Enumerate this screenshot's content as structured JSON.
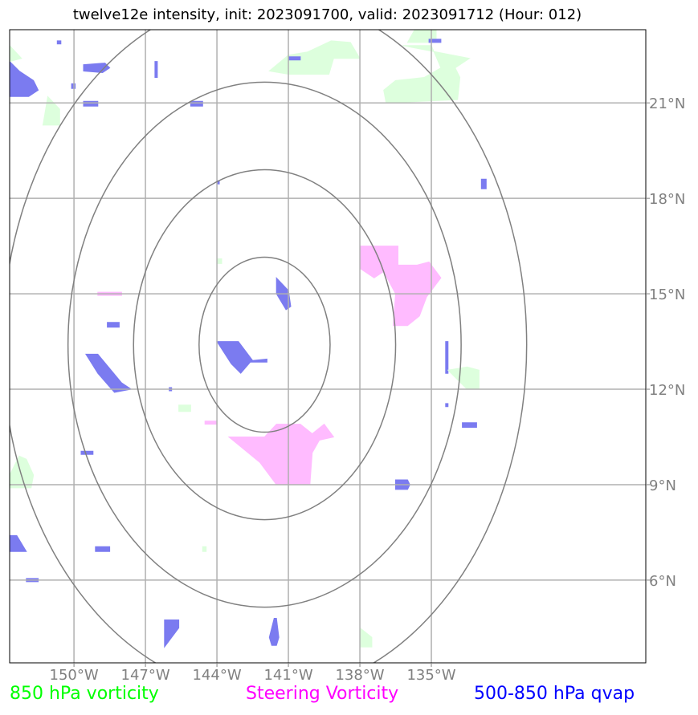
{
  "title": "twelve12e intensity, init: 2023091700, valid: 2023091712 (Hour: 012)",
  "chart_data": {
    "type": "map",
    "map_projection": "lat-lon",
    "longitude_range": [
      -152.7,
      -126.0
    ],
    "latitude_range": [
      3.4,
      23.3
    ],
    "longitude_ticks": [
      -150,
      -147,
      -144,
      -141,
      -138,
      -135
    ],
    "latitude_ticks": [
      21,
      18,
      15,
      12,
      9,
      6
    ],
    "longitude_tick_labels": [
      "150°W",
      "147°W",
      "144°W",
      "141°W",
      "138°W",
      "135°W"
    ],
    "latitude_tick_labels": [
      "21°N",
      "18°N",
      "15°N",
      "12°N",
      "9°N",
      "6°N"
    ],
    "grid": true,
    "range_rings": {
      "center_lon": -142,
      "center_lat": 13.4,
      "radii_deg": [
        2.75,
        5.5,
        8.25,
        11.0
      ],
      "color": "#808080"
    },
    "legend": [
      {
        "label": "850 hPa vorticity",
        "color": "#00ff00"
      },
      {
        "label": "Steering Vorticity",
        "color": "#ff00ff"
      },
      {
        "label": "500-850 hPa qvap",
        "color": "#0000ff"
      }
    ],
    "fill_colors": {
      "green": "#ddffdd",
      "magenta": "#ffbbff",
      "blue": "#7b7bf0"
    },
    "blobs": [
      {
        "field": "blue",
        "points": [
          [
            -152.7,
            22.3
          ],
          [
            -152.3,
            22.0
          ],
          [
            -151.7,
            21.7
          ],
          [
            -151.5,
            21.4
          ],
          [
            -151.9,
            21.2
          ],
          [
            -152.7,
            21.2
          ]
        ]
      },
      {
        "field": "green",
        "points": [
          [
            -152.7,
            22.8
          ],
          [
            -152.2,
            22.4
          ],
          [
            -152.7,
            22.3
          ]
        ]
      },
      {
        "field": "green",
        "points": [
          [
            -151.1,
            21.2
          ],
          [
            -150.6,
            20.8
          ],
          [
            -150.6,
            20.3
          ],
          [
            -151.3,
            20.3
          ]
        ]
      },
      {
        "field": "blue",
        "points": [
          [
            -149.6,
            22.2
          ],
          [
            -148.7,
            22.25
          ],
          [
            -148.5,
            22.1
          ],
          [
            -148.8,
            21.95
          ],
          [
            -149.6,
            22.0
          ]
        ]
      },
      {
        "field": "blue",
        "points": [
          [
            -146.6,
            22.3
          ],
          [
            -146.5,
            22.3
          ],
          [
            -146.5,
            21.8
          ],
          [
            -146.6,
            21.8
          ]
        ]
      },
      {
        "field": "blue",
        "points": [
          [
            -149.6,
            21.05
          ],
          [
            -149.0,
            21.05
          ],
          [
            -149.0,
            20.9
          ],
          [
            -149.6,
            20.9
          ]
        ]
      },
      {
        "field": "blue",
        "points": [
          [
            -150.1,
            21.6
          ],
          [
            -149.95,
            21.6
          ],
          [
            -149.95,
            21.45
          ],
          [
            -150.1,
            21.45
          ]
        ]
      },
      {
        "field": "blue",
        "points": [
          [
            -150.7,
            22.95
          ],
          [
            -150.55,
            22.95
          ],
          [
            -150.55,
            22.85
          ],
          [
            -150.7,
            22.85
          ]
        ]
      },
      {
        "field": "blue",
        "points": [
          [
            -145.1,
            21.05
          ],
          [
            -144.6,
            21.05
          ],
          [
            -144.6,
            20.9
          ],
          [
            -145.1,
            20.9
          ]
        ]
      },
      {
        "field": "green",
        "points": [
          [
            -141.0,
            22.5
          ],
          [
            -140.2,
            22.6
          ],
          [
            -139.2,
            22.95
          ],
          [
            -138.4,
            22.9
          ],
          [
            -138.0,
            22.4
          ],
          [
            -139.1,
            22.4
          ],
          [
            -139.3,
            21.9
          ],
          [
            -141.0,
            21.9
          ],
          [
            -141.8,
            22.0
          ]
        ]
      },
      {
        "field": "blue",
        "points": [
          [
            -141.0,
            22.45
          ],
          [
            -140.5,
            22.45
          ],
          [
            -140.5,
            22.35
          ],
          [
            -141.0,
            22.35
          ]
        ]
      },
      {
        "field": "green",
        "points": [
          [
            -136.2,
            22.8
          ],
          [
            -135.0,
            22.8
          ],
          [
            -134.6,
            22.1
          ],
          [
            -135.3,
            21.8
          ],
          [
            -136.5,
            21.7
          ],
          [
            -137.0,
            21.4
          ],
          [
            -136.9,
            21.0
          ],
          [
            -133.9,
            21.1
          ],
          [
            -133.8,
            21.8
          ],
          [
            -134.0,
            22.1
          ],
          [
            -133.4,
            22.4
          ]
        ]
      },
      {
        "field": "green",
        "points": [
          [
            -135.7,
            23.3
          ],
          [
            -134.8,
            23.3
          ],
          [
            -134.8,
            22.9
          ],
          [
            -136.0,
            22.9
          ]
        ]
      },
      {
        "field": "blue",
        "points": [
          [
            -135.1,
            23.0
          ],
          [
            -134.6,
            23.0
          ],
          [
            -134.6,
            22.9
          ],
          [
            -135.1,
            22.9
          ]
        ]
      },
      {
        "field": "blue",
        "points": [
          [
            -132.9,
            18.6
          ],
          [
            -132.7,
            18.6
          ],
          [
            -132.7,
            18.3
          ],
          [
            -132.9,
            18.3
          ]
        ]
      },
      {
        "field": "blue",
        "points": [
          [
            -144.0,
            18.55
          ],
          [
            -143.9,
            18.55
          ],
          [
            -143.9,
            18.45
          ],
          [
            -144.0,
            18.45
          ]
        ]
      },
      {
        "field": "green",
        "points": [
          [
            -144.0,
            16.1
          ],
          [
            -143.8,
            16.1
          ],
          [
            -143.8,
            15.95
          ],
          [
            -144.0,
            15.95
          ]
        ]
      },
      {
        "field": "magenta",
        "points": [
          [
            -138.0,
            16.5
          ],
          [
            -136.4,
            16.5
          ],
          [
            -136.4,
            15.9
          ],
          [
            -135.6,
            15.9
          ],
          [
            -135.1,
            16.0
          ],
          [
            -134.6,
            15.5
          ],
          [
            -135.2,
            14.9
          ],
          [
            -135.5,
            14.3
          ],
          [
            -136.0,
            14.0
          ],
          [
            -136.6,
            14.0
          ],
          [
            -136.5,
            15.0
          ],
          [
            -137.0,
            15.7
          ],
          [
            -137.4,
            15.5
          ],
          [
            -138.0,
            15.8
          ]
        ]
      },
      {
        "field": "blue",
        "points": [
          [
            -141.5,
            15.5
          ],
          [
            -141.0,
            15.1
          ],
          [
            -140.9,
            14.6
          ],
          [
            -141.1,
            14.5
          ],
          [
            -141.5,
            15.0
          ]
        ]
      },
      {
        "field": "magenta",
        "points": [
          [
            -149.0,
            15.05
          ],
          [
            -148.0,
            15.05
          ],
          [
            -148.0,
            14.95
          ],
          [
            -149.0,
            14.95
          ]
        ]
      },
      {
        "field": "blue",
        "points": [
          [
            -148.6,
            14.1
          ],
          [
            -148.1,
            14.1
          ],
          [
            -148.1,
            13.95
          ],
          [
            -148.6,
            13.95
          ]
        ]
      },
      {
        "field": "blue",
        "points": [
          [
            -144.0,
            13.5
          ],
          [
            -143.1,
            13.5
          ],
          [
            -142.5,
            12.9
          ],
          [
            -141.9,
            12.95
          ],
          [
            -141.9,
            12.85
          ],
          [
            -142.6,
            12.85
          ],
          [
            -143.0,
            12.5
          ],
          [
            -143.4,
            12.8
          ]
        ]
      },
      {
        "field": "blue",
        "points": [
          [
            -149.5,
            13.1
          ],
          [
            -149.0,
            13.1
          ],
          [
            -148.0,
            12.2
          ],
          [
            -147.6,
            12.0
          ],
          [
            -148.3,
            11.9
          ],
          [
            -149.0,
            12.5
          ]
        ]
      },
      {
        "field": "blue",
        "points": [
          [
            -146.0,
            12.05
          ],
          [
            -145.9,
            12.05
          ],
          [
            -145.9,
            11.95
          ],
          [
            -146.0,
            11.95
          ]
        ]
      },
      {
        "field": "blue",
        "points": [
          [
            -134.4,
            13.5
          ],
          [
            -134.3,
            13.5
          ],
          [
            -134.3,
            12.5
          ],
          [
            -134.4,
            12.5
          ]
        ]
      },
      {
        "field": "green",
        "points": [
          [
            -134.3,
            12.6
          ],
          [
            -133.5,
            12.7
          ],
          [
            -133.0,
            12.6
          ],
          [
            -133.0,
            12.0
          ],
          [
            -133.5,
            12.0
          ]
        ]
      },
      {
        "field": "blue",
        "points": [
          [
            -134.4,
            11.55
          ],
          [
            -134.3,
            11.55
          ],
          [
            -134.3,
            11.45
          ],
          [
            -134.4,
            11.45
          ]
        ]
      },
      {
        "field": "blue",
        "points": [
          [
            -133.7,
            10.95
          ],
          [
            -133.1,
            10.95
          ],
          [
            -133.1,
            10.8
          ],
          [
            -133.7,
            10.8
          ]
        ]
      },
      {
        "field": "green",
        "points": [
          [
            -145.6,
            11.5
          ],
          [
            -145.1,
            11.5
          ],
          [
            -145.1,
            11.3
          ],
          [
            -145.6,
            11.3
          ]
        ]
      },
      {
        "field": "magenta",
        "points": [
          [
            -144.5,
            11.0
          ],
          [
            -144.0,
            11.0
          ],
          [
            -144.0,
            10.9
          ],
          [
            -144.5,
            10.9
          ]
        ]
      },
      {
        "field": "magenta",
        "points": [
          [
            -143.5,
            10.5
          ],
          [
            -142.0,
            10.5
          ],
          [
            -141.5,
            10.9
          ],
          [
            -140.5,
            10.9
          ],
          [
            -140.0,
            10.6
          ],
          [
            -139.5,
            10.9
          ],
          [
            -139.1,
            10.5
          ],
          [
            -139.7,
            10.4
          ],
          [
            -140.0,
            10.0
          ],
          [
            -140.1,
            9.0
          ],
          [
            -141.5,
            9.0
          ],
          [
            -142.2,
            9.7
          ]
        ]
      },
      {
        "field": "blue",
        "points": [
          [
            -149.7,
            10.05
          ],
          [
            -149.2,
            10.05
          ],
          [
            -149.2,
            9.95
          ],
          [
            -149.7,
            9.95
          ]
        ]
      },
      {
        "field": "green",
        "points": [
          [
            -152.7,
            9.3
          ],
          [
            -152.3,
            9.9
          ],
          [
            -152.0,
            9.8
          ],
          [
            -151.7,
            9.3
          ],
          [
            -151.8,
            8.9
          ],
          [
            -152.7,
            8.9
          ]
        ]
      },
      {
        "field": "blue",
        "points": [
          [
            -136.5,
            9.15
          ],
          [
            -136.0,
            9.15
          ],
          [
            -135.9,
            9.0
          ],
          [
            -136.0,
            8.85
          ],
          [
            -136.5,
            8.85
          ]
        ]
      },
      {
        "field": "blue",
        "points": [
          [
            -152.7,
            7.4
          ],
          [
            -152.4,
            7.4
          ],
          [
            -152.0,
            6.9
          ],
          [
            -152.7,
            6.9
          ]
        ]
      },
      {
        "field": "blue",
        "points": [
          [
            -149.1,
            7.05
          ],
          [
            -148.5,
            7.05
          ],
          [
            -148.5,
            6.9
          ],
          [
            -149.1,
            6.9
          ]
        ]
      },
      {
        "field": "green",
        "points": [
          [
            -144.6,
            7.05
          ],
          [
            -144.45,
            7.05
          ],
          [
            -144.45,
            6.9
          ],
          [
            -144.6,
            6.9
          ]
        ]
      },
      {
        "field": "blue",
        "points": [
          [
            -152.0,
            6.05
          ],
          [
            -151.5,
            6.05
          ],
          [
            -151.5,
            5.95
          ],
          [
            -152.0,
            5.95
          ]
        ]
      },
      {
        "field": "blue",
        "points": [
          [
            -146.2,
            4.75
          ],
          [
            -145.6,
            4.75
          ],
          [
            -145.6,
            4.5
          ],
          [
            -146.2,
            3.9
          ]
        ]
      },
      {
        "field": "blue",
        "points": [
          [
            -141.6,
            4.8
          ],
          [
            -141.5,
            4.8
          ],
          [
            -141.4,
            4.2
          ],
          [
            -141.5,
            3.95
          ],
          [
            -141.7,
            3.95
          ],
          [
            -141.8,
            4.2
          ]
        ]
      },
      {
        "field": "green",
        "points": [
          [
            -138.0,
            4.5
          ],
          [
            -137.5,
            4.2
          ],
          [
            -137.5,
            3.9
          ],
          [
            -138.0,
            3.9
          ]
        ]
      }
    ]
  },
  "legend_labels": {
    "vorticity_850": "850 hPa vorticity",
    "steering_vorticity": "Steering Vorticity",
    "qvap": "500-850 hPa qvap"
  },
  "colors": {
    "legend_green": "#00ff00",
    "legend_magenta": "#ff00ff",
    "legend_blue": "#0000ff",
    "ring": "#808080",
    "grid": "#b0b0b0"
  }
}
